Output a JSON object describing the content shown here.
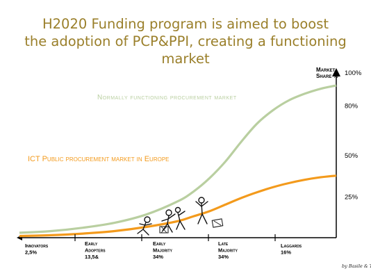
{
  "title_lines": [
    "H2020 Funding program is aimed to boost",
    "the adoption of PCP&PPI, creating a functioning market"
  ],
  "colors": {
    "title": "#9a7f2a",
    "normal_curve": "#b9cfa0",
    "ict_curve": "#f39a1c",
    "axis": "#000000"
  },
  "chart_data": {
    "type": "line",
    "ylabel": "Market Share %",
    "y_ticks": [
      "100%",
      "80%",
      "50%",
      "25%"
    ],
    "y_tick_values": [
      100,
      80,
      50,
      25
    ],
    "ylim": [
      0,
      100
    ],
    "grid": false,
    "categories": [
      {
        "name": "Innovators",
        "pct": "2,5%"
      },
      {
        "name": "Early Adopters",
        "pct": "13,5&"
      },
      {
        "name": "Early Majority",
        "pct": "34%"
      },
      {
        "name": "Late Majority",
        "pct": "34%"
      },
      {
        "name": "Laggards",
        "pct": "16%"
      }
    ],
    "series": [
      {
        "name": "Normally functioning procurement market",
        "color": "#b9cfa0",
        "x": [
          0,
          10,
          20,
          30,
          40,
          50,
          55,
          60,
          65,
          70,
          75,
          80,
          85,
          90,
          95,
          100
        ],
        "y": [
          3,
          4,
          6,
          9,
          14,
          22,
          28,
          36,
          46,
          58,
          69,
          77,
          83,
          87,
          90,
          92
        ]
      },
      {
        "name": "ICT Public procurement market in Europe",
        "color": "#f39a1c",
        "x": [
          0,
          10,
          20,
          30,
          40,
          50,
          55,
          60,
          65,
          70,
          75,
          80,
          85,
          90,
          95,
          100
        ],
        "y": [
          1,
          1.5,
          2.5,
          4,
          6.5,
          10,
          13,
          16,
          20,
          24,
          27.5,
          30.5,
          33,
          35,
          36.5,
          37.5
        ]
      }
    ]
  },
  "signature": "by Basile & Tonio"
}
